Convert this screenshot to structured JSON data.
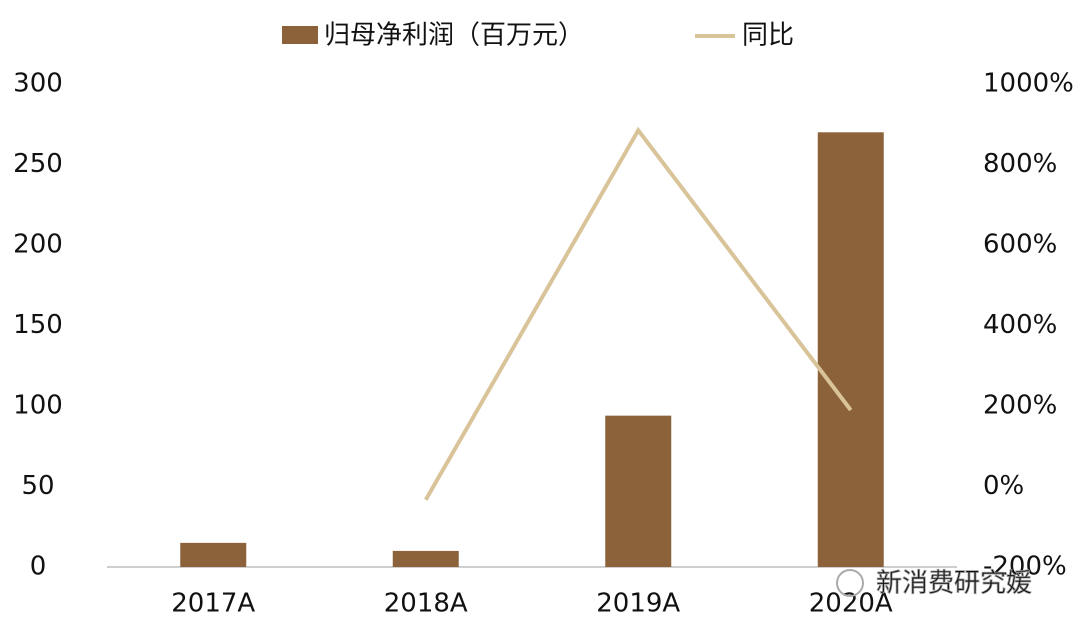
{
  "chart_data": {
    "type": "bar",
    "categories": [
      "2017A",
      "2018A",
      "2019A",
      "2020A"
    ],
    "series": [
      {
        "name": "归母净利润（百万元）",
        "type": "bar",
        "color": "#8b6239",
        "values": [
          15,
          10,
          94,
          270
        ]
      },
      {
        "name": "同比",
        "type": "line",
        "axis": "y2",
        "color": "#d9c49a",
        "values": [
          null,
          -33,
          885,
          190
        ]
      }
    ],
    "ylim": [
      0,
      300
    ],
    "yticks": [
      0,
      50,
      100,
      150,
      200,
      250,
      300
    ],
    "y2lim": [
      -200,
      1000
    ],
    "y2ticks": [
      {
        "value": -200,
        "label": "-200%"
      },
      {
        "value": 0,
        "label": "0%"
      },
      {
        "value": 200,
        "label": "200%"
      },
      {
        "value": 400,
        "label": "400%"
      },
      {
        "value": 600,
        "label": "600%"
      },
      {
        "value": 800,
        "label": "800%"
      },
      {
        "value": 1000,
        "label": "1000%"
      }
    ],
    "grid": false,
    "legend": "top",
    "watermark": "新消费研究媛"
  }
}
